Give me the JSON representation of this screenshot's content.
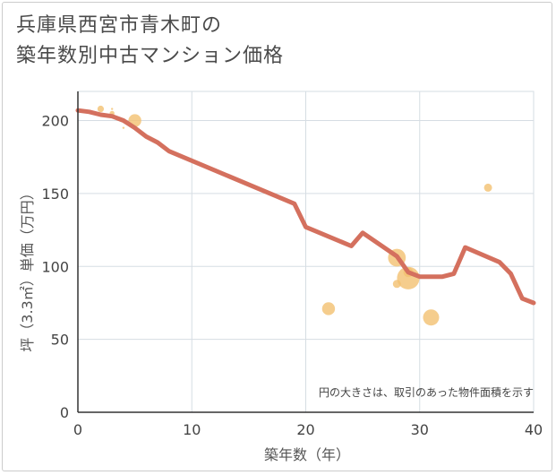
{
  "chart_data": {
    "type": "scatter",
    "title_lines": [
      "兵庫県西宮市青木町の",
      "築年数別中古マンション価格"
    ],
    "xlabel": "築年数（年）",
    "ylabel": "坪（3.3㎡）単価（万円）",
    "xlim": [
      0,
      40
    ],
    "ylim": [
      0,
      220
    ],
    "xticks": [
      0,
      10,
      20,
      30,
      40
    ],
    "yticks": [
      0,
      50,
      100,
      150,
      200
    ],
    "grid": true,
    "note": "円の大きさは、取引のあった物件面積を示す",
    "bubble_color": "#f2c071",
    "line_color": "#d4705e",
    "points": [
      {
        "x": 2,
        "y": 208,
        "size": 4
      },
      {
        "x": 3,
        "y": 205,
        "size": 3
      },
      {
        "x": 3,
        "y": 208,
        "size": 1
      },
      {
        "x": 4,
        "y": 195,
        "size": 1
      },
      {
        "x": 5,
        "y": 200,
        "size": 8
      },
      {
        "x": 22,
        "y": 71,
        "size": 8
      },
      {
        "x": 28,
        "y": 106,
        "size": 11
      },
      {
        "x": 28,
        "y": 88,
        "size": 5
      },
      {
        "x": 29,
        "y": 92,
        "size": 14
      },
      {
        "x": 29,
        "y": 96,
        "size": 6
      },
      {
        "x": 31,
        "y": 65,
        "size": 10
      },
      {
        "x": 36,
        "y": 154,
        "size": 5
      }
    ],
    "trend_line": [
      {
        "x": 0,
        "y": 207
      },
      {
        "x": 1,
        "y": 206
      },
      {
        "x": 2,
        "y": 204
      },
      {
        "x": 3,
        "y": 203
      },
      {
        "x": 4,
        "y": 200
      },
      {
        "x": 5,
        "y": 195
      },
      {
        "x": 6,
        "y": 189
      },
      {
        "x": 7,
        "y": 185
      },
      {
        "x": 8,
        "y": 179
      },
      {
        "x": 19,
        "y": 143
      },
      {
        "x": 20,
        "y": 127
      },
      {
        "x": 24,
        "y": 114
      },
      {
        "x": 25,
        "y": 123
      },
      {
        "x": 28,
        "y": 107
      },
      {
        "x": 29,
        "y": 96
      },
      {
        "x": 30,
        "y": 93
      },
      {
        "x": 32,
        "y": 93
      },
      {
        "x": 33,
        "y": 95
      },
      {
        "x": 34,
        "y": 113
      },
      {
        "x": 37,
        "y": 103
      },
      {
        "x": 38,
        "y": 95
      },
      {
        "x": 39,
        "y": 78
      },
      {
        "x": 40,
        "y": 75
      }
    ]
  }
}
